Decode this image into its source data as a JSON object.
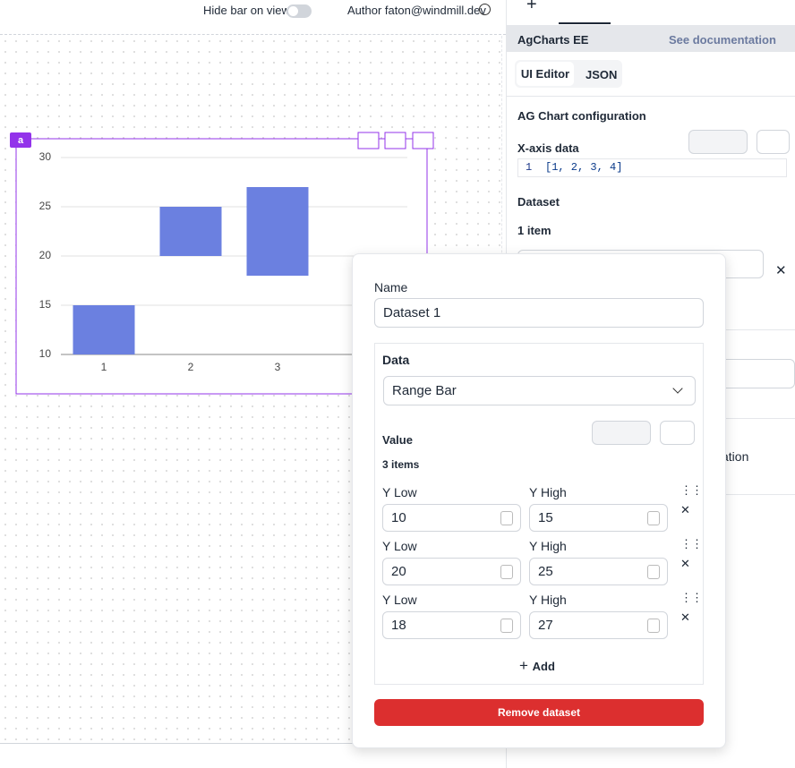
{
  "topbar": {
    "hide_bar_label": "Hide bar on view",
    "author": "Author faton@windmill.dev"
  },
  "component": {
    "id": "a"
  },
  "chart_data": {
    "type": "range-bar",
    "categories": [
      1,
      2,
      3
    ],
    "series": [
      {
        "name": "Dataset 1",
        "color": "#6b80e0",
        "low": [
          10,
          20,
          18
        ],
        "high": [
          15,
          25,
          27
        ]
      }
    ],
    "ylim": [
      10,
      30
    ],
    "yticks": [
      10,
      15,
      20,
      25,
      30
    ],
    "grid": true
  },
  "panel": {
    "title": "AgCharts EE",
    "doc_link": "See documentation",
    "tabs": [
      "UI Editor",
      "JSON"
    ],
    "config_title": "AG Chart configuration",
    "x_axis_label": "X-axis data",
    "x_axis_line": 1,
    "x_axis_code": "[1, 2, 3, 4]",
    "dataset_label": "Dataset",
    "dataset_count": "1 item",
    "truncated_text": "ation"
  },
  "popup": {
    "name_label": "Name",
    "data_label": "Data",
    "data_type": "Range Bar",
    "value_label": "Value",
    "items_count": "3 items",
    "low_label": "Y Low",
    "high_label": "Y High",
    "add": "Add",
    "remove": "Remove dataset"
  }
}
